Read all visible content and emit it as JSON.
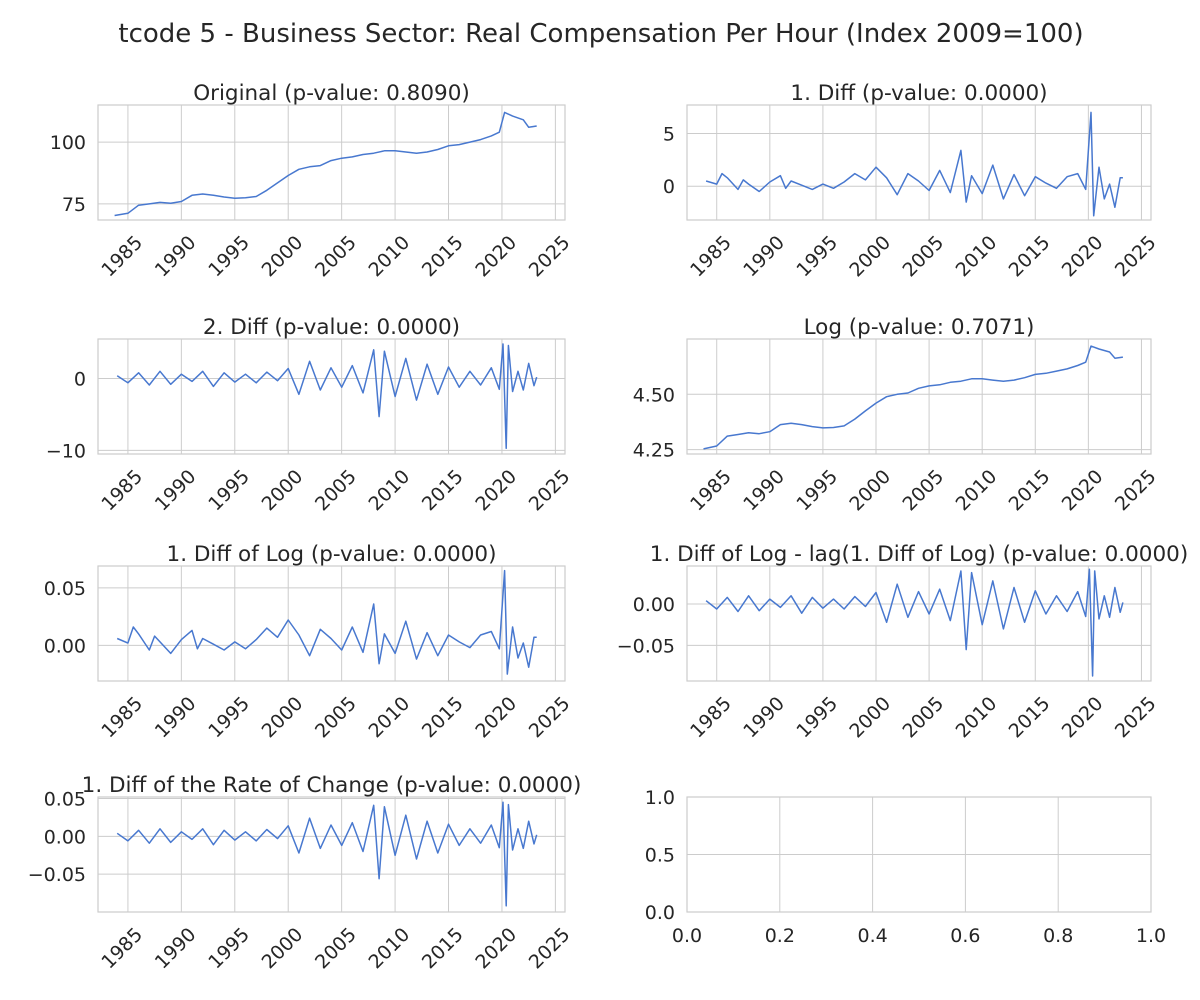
{
  "figure": {
    "title": "tcode 5 - Business Sector: Real Compensation Per Hour (Index 2009=100)"
  },
  "style": {
    "line_color": "#4878cf",
    "grid_color": "#cccccc",
    "text_color": "#262626"
  },
  "chart_data": [
    {
      "type": "line",
      "title": "Original (p-value: 0.8090)",
      "xlim": [
        1982.2,
        2025.9
      ],
      "ylim": [
        68.5,
        115
      ],
      "xticks": [
        1985,
        1990,
        1995,
        2000,
        2005,
        2010,
        2015,
        2020,
        2025
      ],
      "xtick_labels": [
        "1985",
        "1990",
        "1995",
        "2000",
        "2005",
        "2010",
        "2015",
        "2020",
        "2025"
      ],
      "yticks": [
        75,
        100
      ],
      "ytick_labels": [
        "75",
        "100"
      ],
      "grid": true,
      "x_tick_rotation": 45,
      "series": [
        {
          "x": [
            1983.75,
            1985,
            1986,
            1987,
            1988,
            1989,
            1990,
            1991,
            1992,
            1993,
            1994,
            1995,
            1996,
            1997,
            1998,
            1999,
            2000,
            2001,
            2002,
            2003,
            2004,
            2005,
            2006,
            2007,
            2008,
            2009,
            2010,
            2011,
            2012,
            2013,
            2014,
            2015,
            2016,
            2017,
            2018,
            2019,
            2019.75,
            2020.25,
            2021,
            2022,
            2022.5,
            2023.25
          ],
          "values": [
            70.3,
            71.2,
            74.5,
            75.0,
            75.6,
            75.3,
            76.0,
            78.5,
            79.0,
            78.5,
            77.8,
            77.3,
            77.5,
            78.0,
            80.5,
            83.5,
            86.5,
            89.0,
            90.0,
            90.5,
            92.5,
            93.5,
            94.0,
            95.0,
            95.5,
            96.5,
            96.5,
            96.0,
            95.5,
            96.0,
            97.0,
            98.5,
            99.0,
            100.0,
            101.0,
            102.5,
            104.0,
            112.0,
            110.5,
            109.0,
            106.0,
            106.5
          ]
        }
      ]
    },
    {
      "type": "line",
      "title": "1. Diff (p-value: 0.0000)",
      "xlim": [
        1982.2,
        2025.9
      ],
      "ylim": [
        -3.2,
        7.7
      ],
      "xticks": [
        1985,
        1990,
        1995,
        2000,
        2005,
        2010,
        2015,
        2020,
        2025
      ],
      "xtick_labels": [
        "1985",
        "1990",
        "1995",
        "2000",
        "2005",
        "2010",
        "2015",
        "2020",
        "2025"
      ],
      "yticks": [
        0,
        5
      ],
      "ytick_labels": [
        "0",
        "5"
      ],
      "grid": true,
      "x_tick_rotation": 45,
      "series": [
        {
          "x": [
            1984,
            1985,
            1985.5,
            1986,
            1987,
            1987.5,
            1988,
            1989,
            1990,
            1991,
            1991.5,
            1992,
            1993,
            1994,
            1995,
            1996,
            1997,
            1998,
            1999,
            2000,
            2001,
            2002,
            2003,
            2004,
            2005,
            2006,
            2007,
            2008,
            2008.5,
            2009,
            2010,
            2011,
            2012,
            2013,
            2014,
            2015,
            2016,
            2017,
            2018,
            2019,
            2019.75,
            2020.25,
            2020.5,
            2021,
            2021.5,
            2022,
            2022.5,
            2023,
            2023.25
          ],
          "values": [
            0.5,
            0.2,
            1.2,
            0.8,
            -0.3,
            0.6,
            0.2,
            -0.5,
            0.4,
            1.0,
            -0.2,
            0.5,
            0.1,
            -0.3,
            0.2,
            -0.2,
            0.4,
            1.2,
            0.6,
            1.8,
            0.8,
            -0.8,
            1.2,
            0.5,
            -0.4,
            1.5,
            -0.6,
            3.4,
            -1.5,
            1.0,
            -0.7,
            2.0,
            -1.2,
            1.1,
            -0.9,
            0.9,
            0.3,
            -0.2,
            0.9,
            1.2,
            -0.3,
            7.0,
            -2.8,
            1.8,
            -1.2,
            0.2,
            -2.0,
            0.8,
            0.8
          ]
        }
      ]
    },
    {
      "type": "line",
      "title": "2. Diff (p-value: 0.0000)",
      "xlim": [
        1982.2,
        2025.9
      ],
      "ylim": [
        -10.5,
        5.5
      ],
      "xticks": [
        1985,
        1990,
        1995,
        2000,
        2005,
        2010,
        2015,
        2020,
        2025
      ],
      "xtick_labels": [
        "1985",
        "1990",
        "1995",
        "2000",
        "2005",
        "2010",
        "2015",
        "2020",
        "2025"
      ],
      "yticks": [
        -10,
        0
      ],
      "ytick_labels": [
        "−10",
        "0"
      ],
      "grid": true,
      "x_tick_rotation": 45,
      "series": [
        {
          "x": [
            1984,
            1985,
            1986,
            1987,
            1988,
            1989,
            1990,
            1991,
            1992,
            1993,
            1994,
            1995,
            1996,
            1997,
            1998,
            1999,
            2000,
            2001,
            2002,
            2003,
            2004,
            2005,
            2006,
            2007,
            2008,
            2008.5,
            2009,
            2010,
            2011,
            2012,
            2013,
            2014,
            2015,
            2016,
            2017,
            2018,
            2019,
            2019.75,
            2020.1,
            2020.4,
            2020.6,
            2021,
            2021.5,
            2022,
            2022.5,
            2023,
            2023.25
          ],
          "values": [
            0.4,
            -0.6,
            0.8,
            -0.9,
            1.0,
            -0.8,
            0.6,
            -0.4,
            1.0,
            -1.1,
            0.8,
            -0.5,
            0.6,
            -0.6,
            0.9,
            -0.3,
            1.4,
            -2.2,
            2.4,
            -1.6,
            1.5,
            -1.2,
            1.8,
            -2.0,
            4.0,
            -5.3,
            3.8,
            -2.5,
            2.8,
            -3.0,
            2.0,
            -2.2,
            1.6,
            -1.2,
            1.0,
            -0.9,
            1.5,
            -1.5,
            4.8,
            -9.7,
            4.6,
            -1.8,
            1.0,
            -1.6,
            2.1,
            -1.0,
            0.2
          ]
        }
      ]
    },
    {
      "type": "line",
      "title": "Log (p-value: 0.7071)",
      "xlim": [
        1982.2,
        2025.9
      ],
      "ylim": [
        4.23,
        4.75
      ],
      "xticks": [
        1985,
        1990,
        1995,
        2000,
        2005,
        2010,
        2015,
        2020,
        2025
      ],
      "xtick_labels": [
        "1985",
        "1990",
        "1995",
        "2000",
        "2005",
        "2010",
        "2015",
        "2020",
        "2025"
      ],
      "yticks": [
        4.25,
        4.5
      ],
      "ytick_labels": [
        "4.25",
        "4.50"
      ],
      "grid": true,
      "x_tick_rotation": 45,
      "series": [
        {
          "x": [
            1983.75,
            1985,
            1986,
            1987,
            1988,
            1989,
            1990,
            1991,
            1992,
            1993,
            1994,
            1995,
            1996,
            1997,
            1998,
            1999,
            2000,
            2001,
            2002,
            2003,
            2004,
            2005,
            2006,
            2007,
            2008,
            2009,
            2010,
            2011,
            2012,
            2013,
            2014,
            2015,
            2016,
            2017,
            2018,
            2019,
            2019.75,
            2020.25,
            2021,
            2022,
            2022.5,
            2023.25
          ],
          "values": [
            4.253,
            4.266,
            4.311,
            4.318,
            4.326,
            4.322,
            4.331,
            4.363,
            4.369,
            4.363,
            4.354,
            4.348,
            4.35,
            4.357,
            4.388,
            4.425,
            4.46,
            4.489,
            4.5,
            4.506,
            4.527,
            4.538,
            4.543,
            4.554,
            4.559,
            4.57,
            4.57,
            4.564,
            4.559,
            4.564,
            4.575,
            4.59,
            4.595,
            4.605,
            4.615,
            4.63,
            4.645,
            4.718,
            4.705,
            4.691,
            4.663,
            4.668
          ]
        }
      ]
    },
    {
      "type": "line",
      "title": "1. Diff of Log (p-value: 0.0000)",
      "xlim": [
        1982.2,
        2025.9
      ],
      "ylim": [
        -0.031,
        0.069
      ],
      "xticks": [
        1985,
        1990,
        1995,
        2000,
        2005,
        2010,
        2015,
        2020,
        2025
      ],
      "xtick_labels": [
        "1985",
        "1990",
        "1995",
        "2000",
        "2005",
        "2010",
        "2015",
        "2020",
        "2025"
      ],
      "yticks": [
        0,
        0.05
      ],
      "ytick_labels": [
        "0.00",
        "0.05"
      ],
      "grid": true,
      "x_tick_rotation": 45,
      "series": [
        {
          "x": [
            1984,
            1985,
            1985.5,
            1986,
            1987,
            1987.5,
            1988,
            1989,
            1990,
            1991,
            1991.5,
            1992,
            1993,
            1994,
            1995,
            1996,
            1997,
            1998,
            1999,
            2000,
            2001,
            2002,
            2003,
            2004,
            2005,
            2006,
            2007,
            2008,
            2008.5,
            2009,
            2010,
            2011,
            2012,
            2013,
            2014,
            2015,
            2016,
            2017,
            2018,
            2019,
            2019.75,
            2020.25,
            2020.5,
            2021,
            2021.5,
            2022,
            2022.5,
            2023,
            2023.25
          ],
          "values": [
            0.006,
            0.002,
            0.016,
            0.01,
            -0.004,
            0.008,
            0.003,
            -0.007,
            0.005,
            0.013,
            -0.003,
            0.006,
            0.001,
            -0.004,
            0.003,
            -0.003,
            0.005,
            0.015,
            0.007,
            0.022,
            0.009,
            -0.009,
            0.014,
            0.006,
            -0.004,
            0.016,
            -0.006,
            0.036,
            -0.016,
            0.01,
            -0.007,
            0.021,
            -0.012,
            0.011,
            -0.009,
            0.009,
            0.003,
            -0.002,
            0.009,
            0.012,
            -0.003,
            0.065,
            -0.025,
            0.016,
            -0.011,
            0.002,
            -0.019,
            0.007,
            0.007
          ]
        }
      ]
    },
    {
      "type": "line",
      "title": "1. Diff of Log - lag(1. Diff of Log) (p-value: 0.0000)",
      "xlim": [
        1982.2,
        2025.9
      ],
      "ylim": [
        -0.093,
        0.046
      ],
      "xticks": [
        1985,
        1990,
        1995,
        2000,
        2005,
        2010,
        2015,
        2020,
        2025
      ],
      "xtick_labels": [
        "1985",
        "1990",
        "1995",
        "2000",
        "2005",
        "2010",
        "2015",
        "2020",
        "2025"
      ],
      "yticks": [
        -0.05,
        0
      ],
      "ytick_labels": [
        "−0.05",
        "0.00"
      ],
      "grid": true,
      "x_tick_rotation": 45,
      "series": [
        {
          "x": [
            1984,
            1985,
            1986,
            1987,
            1988,
            1989,
            1990,
            1991,
            1992,
            1993,
            1994,
            1995,
            1996,
            1997,
            1998,
            1999,
            2000,
            2001,
            2002,
            2003,
            2004,
            2005,
            2006,
            2007,
            2008,
            2008.5,
            2009,
            2010,
            2011,
            2012,
            2013,
            2014,
            2015,
            2016,
            2017,
            2018,
            2019,
            2019.75,
            2020.1,
            2020.4,
            2020.6,
            2021,
            2021.5,
            2022,
            2022.5,
            2023,
            2023.25
          ],
          "values": [
            0.004,
            -0.006,
            0.008,
            -0.009,
            0.01,
            -0.008,
            0.006,
            -0.004,
            0.01,
            -0.011,
            0.008,
            -0.005,
            0.006,
            -0.006,
            0.009,
            -0.003,
            0.014,
            -0.022,
            0.024,
            -0.016,
            0.015,
            -0.012,
            0.018,
            -0.02,
            0.04,
            -0.055,
            0.038,
            -0.025,
            0.028,
            -0.03,
            0.02,
            -0.022,
            0.016,
            -0.012,
            0.01,
            -0.009,
            0.015,
            -0.015,
            0.042,
            -0.087,
            0.04,
            -0.018,
            0.01,
            -0.016,
            0.02,
            -0.01,
            0.002
          ]
        }
      ]
    },
    {
      "type": "line",
      "title": "1. Diff of the Rate of Change (p-value: 0.0000)",
      "xlim": [
        1982.2,
        2025.9
      ],
      "ylim": [
        -0.1,
        0.052
      ],
      "xticks": [
        1985,
        1990,
        1995,
        2000,
        2005,
        2010,
        2015,
        2020,
        2025
      ],
      "xtick_labels": [
        "1985",
        "1990",
        "1995",
        "2000",
        "2005",
        "2010",
        "2015",
        "2020",
        "2025"
      ],
      "yticks": [
        -0.05,
        0,
        0.05
      ],
      "ytick_labels": [
        "−0.05",
        "0.00",
        "0.05"
      ],
      "grid": true,
      "x_tick_rotation": 45,
      "series": [
        {
          "x": [
            1984,
            1985,
            1986,
            1987,
            1988,
            1989,
            1990,
            1991,
            1992,
            1993,
            1994,
            1995,
            1996,
            1997,
            1998,
            1999,
            2000,
            2001,
            2002,
            2003,
            2004,
            2005,
            2006,
            2007,
            2008,
            2008.5,
            2009,
            2010,
            2011,
            2012,
            2013,
            2014,
            2015,
            2016,
            2017,
            2018,
            2019,
            2019.75,
            2020.1,
            2020.4,
            2020.6,
            2021,
            2021.5,
            2022,
            2022.5,
            2023,
            2023.25
          ],
          "values": [
            0.004,
            -0.006,
            0.008,
            -0.009,
            0.01,
            -0.008,
            0.006,
            -0.004,
            0.01,
            -0.011,
            0.008,
            -0.005,
            0.006,
            -0.006,
            0.009,
            -0.003,
            0.014,
            -0.022,
            0.024,
            -0.016,
            0.015,
            -0.012,
            0.018,
            -0.02,
            0.041,
            -0.056,
            0.039,
            -0.025,
            0.028,
            -0.03,
            0.02,
            -0.022,
            0.016,
            -0.012,
            0.01,
            -0.009,
            0.015,
            -0.015,
            0.045,
            -0.092,
            0.042,
            -0.018,
            0.01,
            -0.016,
            0.02,
            -0.01,
            0.002
          ]
        }
      ]
    },
    {
      "type": "line",
      "title": "",
      "xlim": [
        0,
        1
      ],
      "ylim": [
        0,
        1
      ],
      "xticks": [
        0,
        0.2,
        0.4,
        0.6,
        0.8,
        1.0
      ],
      "xtick_labels": [
        "0.0",
        "0.2",
        "0.4",
        "0.6",
        "0.8",
        "1.0"
      ],
      "yticks": [
        0,
        0.5,
        1.0
      ],
      "ytick_labels": [
        "0.0",
        "0.5",
        "1.0"
      ],
      "grid": true,
      "x_tick_rotation": 0,
      "series": []
    }
  ]
}
